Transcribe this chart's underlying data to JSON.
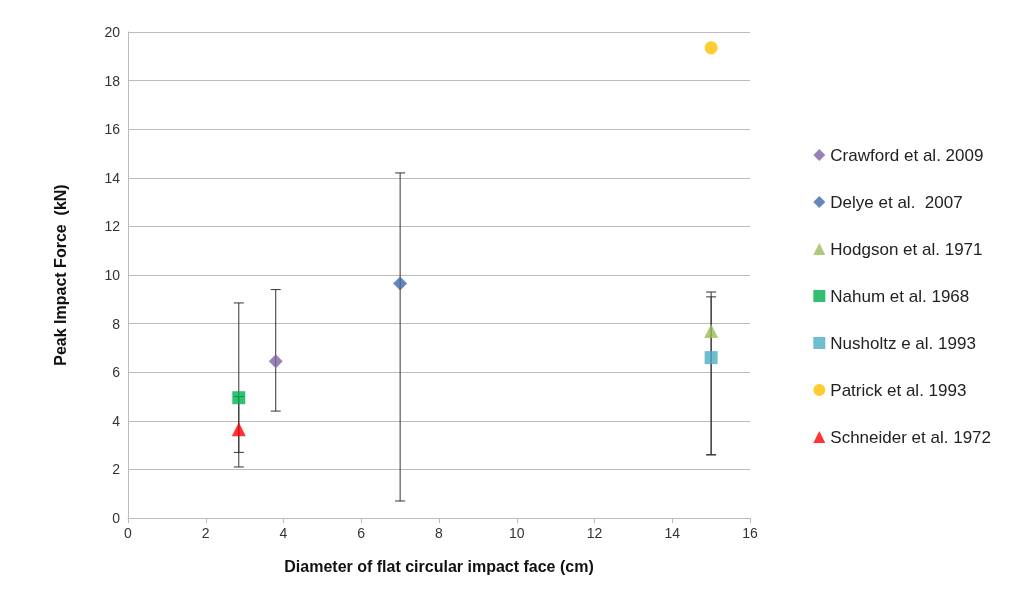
{
  "chart_data": {
    "type": "scatter",
    "xlabel": "Diameter of flat circular impact face (cm)",
    "ylabel": "Peak Impact Force  (kN)",
    "xlim": [
      0,
      16
    ],
    "xticks": [
      0,
      2,
      4,
      6,
      8,
      10,
      12,
      14,
      16
    ],
    "ylim": [
      0,
      20
    ],
    "yticks": [
      0,
      2,
      4,
      6,
      8,
      10,
      12,
      14,
      16,
      18,
      20
    ],
    "grid": "y",
    "legend": "right",
    "series": [
      {
        "name": "Crawford et al. 2009",
        "color": "#8064a2",
        "marker": "diamond",
        "x": [
          3.8
        ],
        "values": [
          6.45
        ],
        "errors": [
          [
            4.4,
            9.4
          ]
        ]
      },
      {
        "name": "Delye et al.  2007",
        "color": "#3e6aaa",
        "marker": "diamond",
        "x": [
          7
        ],
        "values": [
          9.65
        ],
        "errors": [
          [
            0.7,
            14.2
          ]
        ]
      },
      {
        "name": "Hodgson et al. 1971",
        "color": "#9bbb59",
        "marker": "triangle",
        "x": [
          15
        ],
        "values": [
          7.7
        ],
        "errors": [
          [
            2.6,
            9.3
          ]
        ]
      },
      {
        "name": "Nahum et al. 1968",
        "color": "#00b050",
        "marker": "square",
        "x": [
          2.85
        ],
        "values": [
          4.95
        ],
        "errors": [
          [
            2.1,
            8.85
          ]
        ]
      },
      {
        "name": "Nusholtz e al. 1993",
        "color": "#4bacc6",
        "marker": "square",
        "x": [
          15
        ],
        "values": [
          6.6
        ],
        "errors": [
          [
            2.6,
            9.1
          ]
        ]
      },
      {
        "name": "Patrick et al. 1993",
        "color": "#ffc000",
        "marker": "circle",
        "x": [
          15
        ],
        "values": [
          19.35
        ]
      },
      {
        "name": "Schneider et al. 1972",
        "color": "#ff0000",
        "marker": "triangle",
        "x": [
          2.85
        ],
        "values": [
          3.65
        ],
        "errors": [
          [
            2.7,
            5.0
          ]
        ]
      }
    ]
  }
}
